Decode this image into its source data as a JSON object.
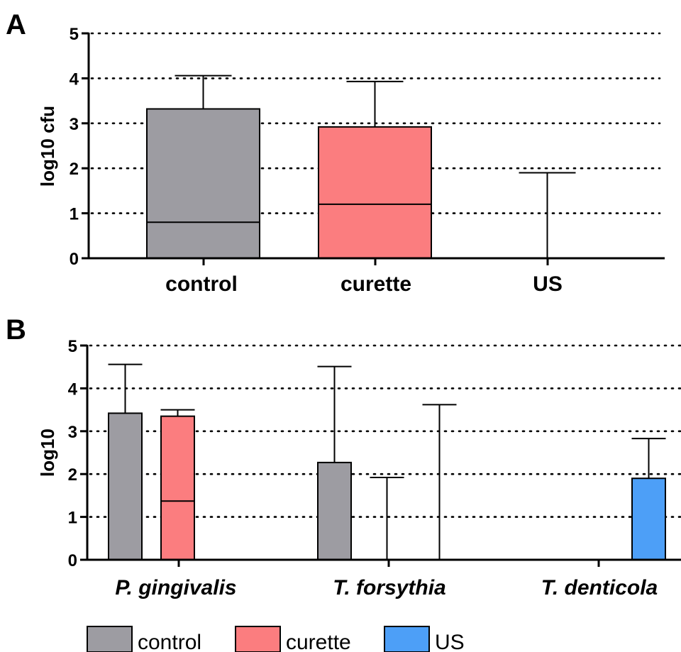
{
  "colors": {
    "control": "#9d9ca2",
    "curette": "#fb7d7f",
    "US": "#4d9ff7"
  },
  "legend": [
    {
      "label": "control",
      "color_key": "control"
    },
    {
      "label": "curette",
      "color_key": "curette"
    },
    {
      "label": "US",
      "color_key": "US"
    }
  ],
  "chart_data": [
    {
      "panel": "A",
      "type": "box",
      "ylabel": "log10 cfu",
      "ylim": [
        0,
        5
      ],
      "yticks": [
        "0",
        "1",
        "2",
        "3",
        "4",
        "5"
      ],
      "grid": true,
      "categories": [
        "control",
        "curette",
        "US"
      ],
      "boxes": [
        {
          "category": "control",
          "color_key": "control",
          "q1": 0,
          "median": 0.8,
          "q3": 3.32,
          "whisker_high": 4.06
        },
        {
          "category": "curette",
          "color_key": "curette",
          "q1": 0,
          "median": 1.2,
          "q3": 2.92,
          "whisker_high": 3.93
        },
        {
          "category": "US",
          "color_key": "US",
          "q1": 0,
          "median": 0,
          "q3": 0,
          "whisker_high": 1.9
        }
      ]
    },
    {
      "panel": "B",
      "type": "box",
      "ylabel": "log10",
      "ylim": [
        0,
        5
      ],
      "yticks": [
        "0",
        "1",
        "2",
        "3",
        "4",
        "5"
      ],
      "grid": true,
      "categories": [
        "P. gingivalis",
        "T. forsythia",
        "T. denticola"
      ],
      "series": [
        {
          "name": "control",
          "color_key": "control",
          "boxes": [
            {
              "q1": 0,
              "median": 0,
              "q3": 3.42,
              "whisker_high": 4.56
            },
            {
              "q1": 0,
              "median": 0,
              "q3": 2.27,
              "whisker_high": 4.51
            },
            {
              "q1": 0,
              "median": 0,
              "q3": 0,
              "whisker_high": 0
            }
          ]
        },
        {
          "name": "curette",
          "color_key": "curette",
          "boxes": [
            {
              "q1": 0,
              "median": 1.37,
              "q3": 3.35,
              "whisker_high": 3.5
            },
            {
              "q1": 0,
              "median": 0,
              "q3": 0,
              "whisker_high": 1.92
            },
            {
              "q1": 0,
              "median": 0,
              "q3": 0,
              "whisker_high": 0
            }
          ]
        },
        {
          "name": "US",
          "color_key": "US",
          "boxes": [
            {
              "q1": 0,
              "median": 0,
              "q3": 0,
              "whisker_high": 0
            },
            {
              "q1": 0,
              "median": 0,
              "q3": 0,
              "whisker_high": 3.62
            },
            {
              "q1": 0,
              "median": 0,
              "q3": 1.9,
              "whisker_high": 2.83
            }
          ]
        }
      ]
    }
  ]
}
